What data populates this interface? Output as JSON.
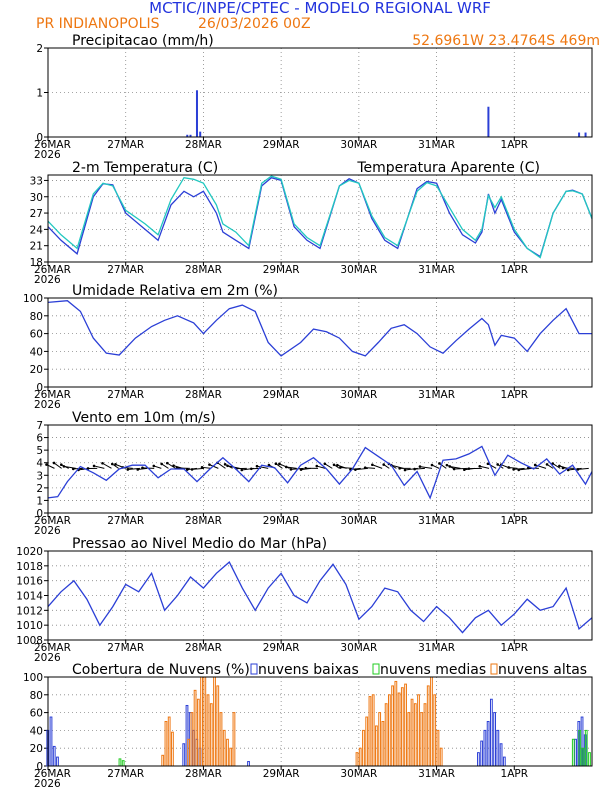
{
  "header": {
    "title": "MCTIC/INPE/CPTEC - MODELO REGIONAL WRF",
    "station": "PR INDIANOPOLIS",
    "run": "26/03/2026 00Z",
    "location": "52.6961W 23.4764S 469m"
  },
  "colors": {
    "header_blue": "#2233dd",
    "header_orange": "#ee7711",
    "series_blue": "#2b3fd6",
    "apparent_cyan": "#22c8c0",
    "cloud_low": "#2b3fd6",
    "cloud_mid": "#22cc22",
    "cloud_high": "#ee7711",
    "grid": "#888888"
  },
  "chart_data": [
    {
      "id": "precip",
      "type": "bar",
      "title": "Precipitacao (mm/h)",
      "x_start_hour": 0,
      "x_end_hour": 168,
      "ylim": [
        0,
        2
      ],
      "yticks": [
        0,
        1,
        2
      ],
      "xticks": [
        {
          "hour": 0,
          "label": "26MAR",
          "sub": "2026"
        },
        {
          "hour": 24,
          "label": "27MAR"
        },
        {
          "hour": 48,
          "label": "28MAR"
        },
        {
          "hour": 72,
          "label": "29MAR"
        },
        {
          "hour": 96,
          "label": "30MAR"
        },
        {
          "hour": 120,
          "label": "31MAR"
        },
        {
          "hour": 144,
          "label": "1APR"
        }
      ],
      "series": [
        {
          "name": "precip",
          "hours": [
            43,
            44,
            46,
            47,
            136,
            164,
            166
          ],
          "values": [
            0.05,
            0.05,
            1.05,
            0.12,
            0.68,
            0.1,
            0.1
          ]
        }
      ]
    },
    {
      "id": "temp",
      "type": "line",
      "title": "2-m Temperatura (C)",
      "legend": "Temperatura Aparente (C)",
      "x_start_hour": 0,
      "x_end_hour": 168,
      "ylim": [
        18,
        34
      ],
      "yticks": [
        18,
        21,
        24,
        27,
        30,
        33
      ],
      "xticks": [
        {
          "hour": 0,
          "label": "26MAR",
          "sub": "2026"
        },
        {
          "hour": 24,
          "label": "27MAR"
        },
        {
          "hour": 48,
          "label": "28MAR"
        },
        {
          "hour": 72,
          "label": "29MAR"
        },
        {
          "hour": 96,
          "label": "30MAR"
        },
        {
          "hour": 120,
          "label": "31MAR"
        },
        {
          "hour": 144,
          "label": "1APR"
        }
      ],
      "series": [
        {
          "name": "Temperatura",
          "color": "#2b3fd6",
          "hours": [
            0,
            4,
            9,
            14,
            17,
            20,
            24,
            30,
            34,
            38,
            42,
            45,
            48,
            52,
            54,
            58,
            62,
            66,
            69,
            72,
            76,
            80,
            84,
            90,
            93,
            96,
            100,
            104,
            108,
            114,
            117,
            120,
            124,
            128,
            132,
            134,
            136,
            138,
            140,
            144,
            148,
            152,
            156,
            160,
            162,
            165,
            168
          ],
          "values": [
            24.5,
            22,
            19.5,
            30,
            32.4,
            32.2,
            27,
            24,
            22,
            28.5,
            31,
            30,
            31,
            27,
            23.5,
            22,
            20.5,
            32,
            33.5,
            33,
            24.5,
            22,
            20.5,
            32,
            33.3,
            32.5,
            26,
            22,
            20.5,
            31.5,
            32.8,
            32.5,
            27,
            23,
            21.5,
            23.5,
            30.5,
            27,
            29.5,
            23.5,
            20.5,
            19,
            27,
            31,
            31.2,
            30.5,
            26
          ]
        },
        {
          "name": "Temperatura Aparente",
          "color": "#22c8c0",
          "hours": [
            0,
            4,
            9,
            14,
            17,
            20,
            24,
            30,
            34,
            38,
            42,
            45,
            48,
            52,
            54,
            58,
            62,
            66,
            69,
            72,
            76,
            80,
            84,
            90,
            93,
            96,
            100,
            104,
            108,
            114,
            117,
            120,
            124,
            128,
            132,
            134,
            136,
            138,
            140,
            144,
            148,
            152,
            156,
            160,
            162,
            165,
            168
          ],
          "values": [
            25.5,
            23,
            20.5,
            30.5,
            32.5,
            32,
            27.5,
            25,
            23,
            29.5,
            33.5,
            33.2,
            32.5,
            28.5,
            25,
            23.5,
            21,
            32.5,
            33.8,
            33.2,
            25,
            22.5,
            21,
            32,
            33,
            32.5,
            26.5,
            22.5,
            21,
            31,
            32.6,
            32,
            28,
            24,
            22,
            24,
            30.2,
            28,
            30,
            24,
            20.5,
            18.8,
            27,
            31,
            31.1,
            30.5,
            26
          ]
        }
      ]
    },
    {
      "id": "rh",
      "type": "line",
      "title": "Umidade Relativa em 2m (%)",
      "x_start_hour": 0,
      "x_end_hour": 168,
      "ylim": [
        0,
        100
      ],
      "yticks": [
        0,
        20,
        40,
        60,
        80,
        100
      ],
      "xticks": [
        {
          "hour": 0,
          "label": "26MAR",
          "sub": "2026"
        },
        {
          "hour": 24,
          "label": "27MAR"
        },
        {
          "hour": 48,
          "label": "28MAR"
        },
        {
          "hour": 72,
          "label": "29MAR"
        },
        {
          "hour": 96,
          "label": "30MAR"
        },
        {
          "hour": 120,
          "label": "31MAR"
        },
        {
          "hour": 144,
          "label": "1APR"
        }
      ],
      "series": [
        {
          "name": "UR",
          "color": "#2b3fd6",
          "hours": [
            0,
            6,
            10,
            14,
            18,
            22,
            27,
            32,
            36,
            40,
            45,
            48,
            52,
            56,
            60,
            64,
            68,
            72,
            78,
            82,
            86,
            90,
            94,
            98,
            102,
            106,
            110,
            114,
            118,
            122,
            126,
            130,
            134,
            136,
            138,
            140,
            144,
            148,
            152,
            156,
            160,
            164,
            168
          ],
          "values": [
            95,
            97,
            85,
            55,
            38,
            36,
            55,
            68,
            75,
            80,
            72,
            60,
            75,
            88,
            92,
            85,
            50,
            35,
            50,
            65,
            62,
            55,
            40,
            35,
            50,
            66,
            70,
            60,
            45,
            38,
            52,
            65,
            77,
            70,
            47,
            58,
            55,
            40,
            60,
            75,
            88,
            60,
            60
          ]
        }
      ]
    },
    {
      "id": "wind",
      "type": "line",
      "title": "Vento em 10m (m/s)",
      "x_start_hour": 0,
      "x_end_hour": 168,
      "ylim": [
        0,
        7
      ],
      "yticks": [
        0,
        1,
        2,
        3,
        4,
        5,
        6,
        7
      ],
      "arrow_row_value": 3.55,
      "xticks": [
        {
          "hour": 0,
          "label": "26MAR",
          "sub": "2026"
        },
        {
          "hour": 24,
          "label": "27MAR"
        },
        {
          "hour": 48,
          "label": "28MAR"
        },
        {
          "hour": 72,
          "label": "29MAR"
        },
        {
          "hour": 96,
          "label": "30MAR"
        },
        {
          "hour": 120,
          "label": "31MAR"
        },
        {
          "hour": 144,
          "label": "1APR"
        }
      ],
      "series": [
        {
          "name": "Vento",
          "color": "#2b3fd6",
          "hours": [
            0,
            3,
            6,
            10,
            14,
            18,
            22,
            26,
            30,
            34,
            38,
            42,
            46,
            50,
            54,
            58,
            62,
            66,
            70,
            74,
            78,
            82,
            86,
            90,
            94,
            98,
            102,
            106,
            110,
            114,
            118,
            122,
            126,
            130,
            134,
            138,
            142,
            146,
            150,
            154,
            158,
            162,
            166,
            168
          ],
          "values": [
            1.2,
            1.3,
            2.5,
            3.7,
            3.2,
            2.6,
            3.5,
            3.8,
            3.8,
            2.8,
            3.5,
            3.5,
            2.5,
            3.5,
            4.4,
            3.5,
            2.5,
            3.8,
            3.6,
            2.4,
            3.8,
            4.4,
            3.5,
            2.3,
            3.5,
            5.2,
            4.5,
            3.8,
            2.2,
            3.3,
            1.2,
            4.2,
            4.3,
            4.7,
            5.3,
            3.0,
            4.6,
            4.0,
            3.5,
            4.3,
            3.1,
            3.8,
            2.3,
            3.3
          ]
        }
      ]
    },
    {
      "id": "pressure",
      "type": "line",
      "title": "Pressao ao Nivel Medio do Mar (hPa)",
      "x_start_hour": 0,
      "x_end_hour": 168,
      "ylim": [
        1008,
        1020
      ],
      "yticks": [
        1008,
        1010,
        1012,
        1014,
        1016,
        1018,
        1020
      ],
      "xticks": [
        {
          "hour": 0,
          "label": "26MAR",
          "sub": "2026"
        },
        {
          "hour": 24,
          "label": "27MAR"
        },
        {
          "hour": 48,
          "label": "28MAR"
        },
        {
          "hour": 72,
          "label": "29MAR"
        },
        {
          "hour": 96,
          "label": "30MAR"
        },
        {
          "hour": 120,
          "label": "31MAR"
        },
        {
          "hour": 144,
          "label": "1APR"
        }
      ],
      "series": [
        {
          "name": "Pressao",
          "color": "#2b3fd6",
          "hours": [
            0,
            4,
            8,
            12,
            16,
            20,
            24,
            28,
            32,
            36,
            40,
            44,
            48,
            52,
            56,
            60,
            64,
            68,
            72,
            76,
            80,
            84,
            88,
            92,
            96,
            100,
            104,
            108,
            112,
            116,
            120,
            124,
            128,
            132,
            136,
            140,
            144,
            148,
            152,
            156,
            160,
            164,
            168
          ],
          "values": [
            1012.5,
            1014.5,
            1016,
            1013.5,
            1010,
            1012.5,
            1015.5,
            1014.5,
            1017,
            1012,
            1014,
            1016.5,
            1015,
            1017,
            1018.5,
            1015,
            1012,
            1015,
            1017,
            1014,
            1013,
            1016,
            1018.2,
            1015.5,
            1010.8,
            1012.5,
            1015,
            1014.5,
            1012,
            1010.5,
            1012.5,
            1011,
            1009,
            1011,
            1012,
            1010,
            1011.5,
            1013.5,
            1012,
            1012.5,
            1015,
            1009.5,
            1011
          ]
        }
      ]
    },
    {
      "id": "clouds",
      "type": "bar",
      "title": "Cobertura de Nuvens (%)",
      "legend": [
        "nuvens baixas",
        "nuvens medias",
        "nuvens altas"
      ],
      "x_start_hour": 0,
      "x_end_hour": 168,
      "ylim": [
        0,
        100
      ],
      "yticks": [
        0,
        20,
        40,
        60,
        80,
        100
      ],
      "xticks": [
        {
          "hour": 0,
          "label": "26MAR",
          "sub": "2026"
        },
        {
          "hour": 24,
          "label": "27MAR"
        },
        {
          "hour": 48,
          "label": "28MAR"
        },
        {
          "hour": 72,
          "label": "29MAR"
        },
        {
          "hour": 96,
          "label": "30MAR"
        },
        {
          "hour": 120,
          "label": "31MAR"
        },
        {
          "hour": 144,
          "label": "1APR"
        }
      ],
      "series": [
        {
          "name": "nuvens baixas",
          "color": "#2b3fd6",
          "hours": [
            0,
            1,
            2,
            3,
            42,
            43,
            44,
            45,
            46,
            47,
            62,
            133,
            134,
            135,
            136,
            137,
            138,
            139,
            140,
            141,
            163,
            164,
            165,
            166
          ],
          "values": [
            40,
            55,
            22,
            10,
            25,
            68,
            60,
            40,
            30,
            20,
            5,
            15,
            28,
            40,
            50,
            75,
            60,
            40,
            25,
            10,
            30,
            50,
            55,
            35
          ]
        },
        {
          "name": "nuvens medias",
          "color": "#22cc22",
          "hours": [
            22,
            23,
            162,
            164,
            165,
            166,
            167
          ],
          "values": [
            8,
            6,
            30,
            40,
            20,
            40,
            15
          ]
        },
        {
          "name": "nuvens altas",
          "color": "#ee7711",
          "hours": [
            35,
            36,
            37,
            38,
            43,
            44,
            45,
            46,
            47,
            48,
            49,
            50,
            51,
            52,
            53,
            54,
            55,
            56,
            57,
            95,
            96,
            97,
            98,
            99,
            100,
            101,
            102,
            103,
            104,
            105,
            106,
            107,
            108,
            109,
            110,
            111,
            112,
            113,
            114,
            115,
            116,
            117,
            118,
            119,
            120,
            121
          ],
          "values": [
            12,
            50,
            55,
            38,
            30,
            60,
            85,
            75,
            100,
            100,
            80,
            70,
            100,
            90,
            60,
            40,
            30,
            20,
            60,
            15,
            20,
            40,
            55,
            78,
            80,
            45,
            60,
            50,
            70,
            80,
            90,
            95,
            82,
            88,
            92,
            60,
            75,
            70,
            80,
            60,
            70,
            90,
            100,
            80,
            40,
            20
          ]
        }
      ]
    }
  ]
}
